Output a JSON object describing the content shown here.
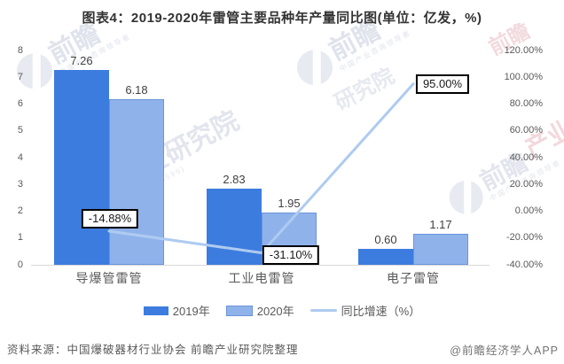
{
  "title": "图表4：2019-2020年雷管主要品种年产量同比图(单位：亿发，%)",
  "chart_data": {
    "type": "bar",
    "subtype": "grouped-bar-with-line",
    "categories": [
      "导爆管雷管",
      "工业电雷管",
      "电子雷管"
    ],
    "series": [
      {
        "name": "2019年",
        "type": "bar",
        "axis": "left",
        "color": "#3D7CDF",
        "values": [
          7.26,
          2.83,
          0.6
        ],
        "labels": [
          "7.26",
          "2.83",
          "0.60"
        ]
      },
      {
        "name": "2020年",
        "type": "bar",
        "axis": "left",
        "color": "#8FB2EA",
        "border_color": "#6B94DB",
        "values": [
          6.18,
          1.95,
          1.17
        ],
        "labels": [
          "6.18",
          "1.95",
          "1.17"
        ]
      },
      {
        "name": "同比增速（%）",
        "type": "line",
        "axis": "right",
        "color": "#AECBF0",
        "values": [
          -14.88,
          -31.1,
          95.0
        ],
        "labels": [
          "-14.88%",
          "-31.10%",
          "95.00%"
        ]
      }
    ],
    "left_axis": {
      "min": 0,
      "max": 8,
      "ticks": [
        "8",
        "7",
        "6",
        "5",
        "4",
        "3",
        "2",
        "1",
        "0"
      ]
    },
    "right_axis": {
      "min": -40,
      "max": 120,
      "ticks": [
        "120.00%",
        "100.00%",
        "80.00%",
        "60.00%",
        "40.00%",
        "20.00%",
        "0.00%",
        "-20.00%",
        "-40.00%"
      ]
    },
    "grid": false,
    "legend_position": "bottom",
    "legend": [
      "2019年",
      "2020年",
      "同比增速（%）"
    ]
  },
  "footer": {
    "source": "资料来源：中国爆破器材行业协会 前瞻产业研究院整理",
    "credit": "@前瞻经济学人APP"
  },
  "watermark": {
    "brand": "前瞻",
    "tagline": "中国产业咨询领导者",
    "institute": "产业研究院",
    "institute_short": "研究院",
    "industry": "产业",
    "stock": "(股票:839599)"
  }
}
